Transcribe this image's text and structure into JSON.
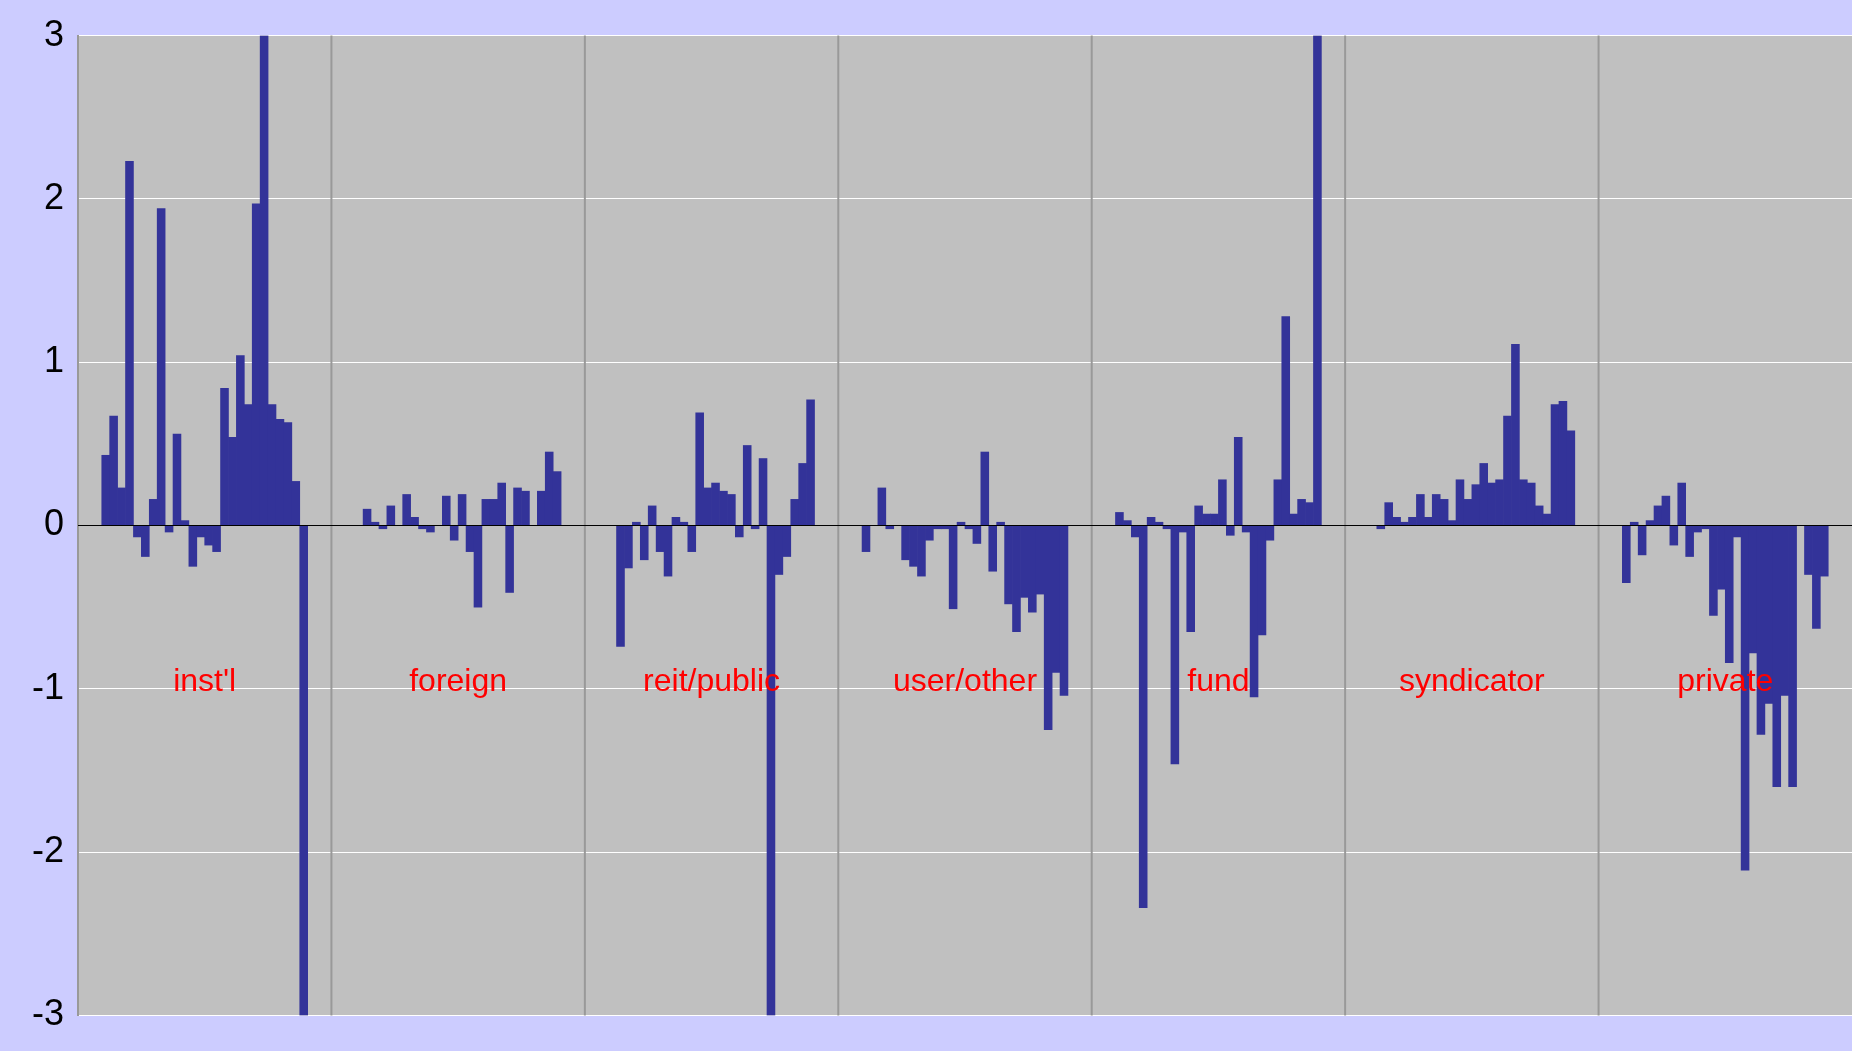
{
  "chart_data": {
    "type": "bar",
    "categories": [
      null,
      null,
      null,
      null,
      null,
      null,
      null,
      null,
      null,
      null,
      null,
      null,
      null,
      null,
      null,
      null,
      null,
      null,
      null,
      null,
      null,
      null,
      null,
      null,
      null,
      null,
      null,
      null,
      null,
      null,
      null,
      null,
      null,
      null,
      null,
      null,
      null,
      null,
      null,
      null,
      null,
      null,
      null,
      null,
      null,
      null,
      null,
      null,
      null,
      null,
      null,
      null,
      null,
      null,
      null,
      null,
      null,
      null,
      null,
      null,
      null,
      null,
      null,
      null,
      null,
      null,
      null,
      null,
      null,
      null,
      null,
      null,
      null,
      null,
      null,
      null,
      null,
      null,
      null,
      null,
      null,
      null,
      null,
      null,
      null,
      null,
      null,
      null,
      null,
      null,
      null,
      null,
      null,
      null,
      null,
      null,
      null,
      null,
      null,
      null,
      null,
      null,
      null,
      null,
      null,
      null,
      null,
      null,
      null,
      null,
      null,
      null,
      null,
      null,
      null,
      null,
      null,
      null,
      null,
      null,
      null,
      null,
      null,
      null,
      null,
      null,
      null,
      null,
      null,
      null,
      null,
      null,
      null,
      null,
      null,
      null,
      null,
      null,
      null,
      null,
      null,
      null,
      null,
      null,
      null,
      null,
      null,
      null,
      null,
      null,
      null,
      null,
      null,
      null,
      null,
      null,
      null,
      null,
      null,
      null,
      null,
      null,
      null,
      null,
      null,
      null,
      null,
      null,
      null,
      null,
      null,
      null,
      null,
      null,
      null,
      null,
      null,
      null,
      null,
      null,
      null,
      null,
      null,
      null,
      null,
      null,
      null,
      null,
      null,
      null,
      null,
      null,
      null,
      null,
      null,
      null,
      null,
      null,
      null,
      null,
      null,
      null,
      null,
      null,
      null,
      null,
      null,
      null,
      null,
      null,
      null,
      null,
      null,
      null,
      null,
      null,
      null,
      null,
      null,
      null,
      null,
      null,
      null,
      null
    ],
    "values": [
      null,
      null,
      null,
      0.43,
      0.67,
      0.23,
      2.23,
      -0.07,
      -0.19,
      0.16,
      1.94,
      -0.04,
      0.56,
      0.03,
      -0.25,
      -0.07,
      -0.12,
      -0.16,
      0.84,
      0.54,
      1.04,
      0.74,
      1.97,
      3,
      0.74,
      0.65,
      0.63,
      0.27,
      -3,
      null,
      null,
      null,
      null,
      null,
      null,
      null,
      0.1,
      0.02,
      -0.02,
      0.12,
      null,
      0.19,
      0.05,
      -0.02,
      -0.04,
      null,
      0.18,
      -0.09,
      0.19,
      -0.16,
      -0.5,
      0.16,
      0.16,
      0.26,
      -0.41,
      0.23,
      0.21,
      null,
      0.21,
      0.45,
      0.33,
      null,
      null,
      null,
      null,
      null,
      null,
      null,
      -0.74,
      -0.26,
      0.02,
      -0.21,
      0.12,
      -0.16,
      -0.31,
      0.05,
      0.02,
      -0.16,
      0.69,
      0.23,
      0.26,
      0.21,
      0.19,
      -0.07,
      0.49,
      -0.02,
      0.41,
      -3,
      -0.3,
      -0.19,
      0.16,
      0.38,
      0.77,
      null,
      null,
      null,
      null,
      null,
      null,
      -0.16,
      null,
      0.23,
      -0.02,
      null,
      -0.21,
      -0.25,
      -0.31,
      -0.09,
      -0.02,
      -0.02,
      -0.51,
      0.02,
      -0.02,
      -0.11,
      0.45,
      -0.28,
      0.02,
      -0.48,
      -0.65,
      -0.44,
      -0.53,
      -0.42,
      -1.25,
      -0.9,
      -1.04,
      null,
      null,
      null,
      null,
      null,
      null,
      0.08,
      0.03,
      -0.07,
      -2.34,
      0.05,
      0.02,
      -0.02,
      -1.46,
      -0.04,
      -0.65,
      0.12,
      0.07,
      0.07,
      0.28,
      -0.06,
      0.54,
      -0.04,
      -1.05,
      -0.67,
      -0.09,
      0.28,
      1.28,
      0.07,
      0.16,
      0.14,
      3,
      null,
      null,
      null,
      null,
      null,
      null,
      null,
      -0.02,
      0.14,
      0.05,
      0.02,
      0.05,
      0.19,
      0.05,
      0.19,
      0.16,
      0.03,
      0.28,
      0.16,
      0.25,
      0.38,
      0.26,
      0.28,
      0.67,
      1.11,
      0.28,
      0.26,
      0.12,
      0.07,
      0.74,
      0.76,
      0.58,
      null,
      null,
      null,
      null,
      null,
      null,
      -0.35,
      0.02,
      -0.18,
      0.03,
      0.12,
      0.18,
      -0.12,
      0.26,
      -0.19,
      -0.04,
      -0.02,
      -0.55,
      -0.39,
      -0.84,
      -0.07,
      -2.11,
      -0.78,
      -1.28,
      -1.09,
      -1.6,
      -1.04,
      -1.6,
      null,
      -0.3,
      -0.63,
      -0.31,
      null,
      null,
      null
    ],
    "color": "#333399",
    "annotations": [
      "inst'l",
      "foreign",
      "reit/public",
      "user/other",
      "fund",
      "syndicator",
      "private"
    ],
    "ylim": [
      -3,
      3
    ],
    "yticks": [
      -3,
      -2,
      -1,
      0,
      1,
      2,
      3
    ],
    "grid": "y"
  }
}
